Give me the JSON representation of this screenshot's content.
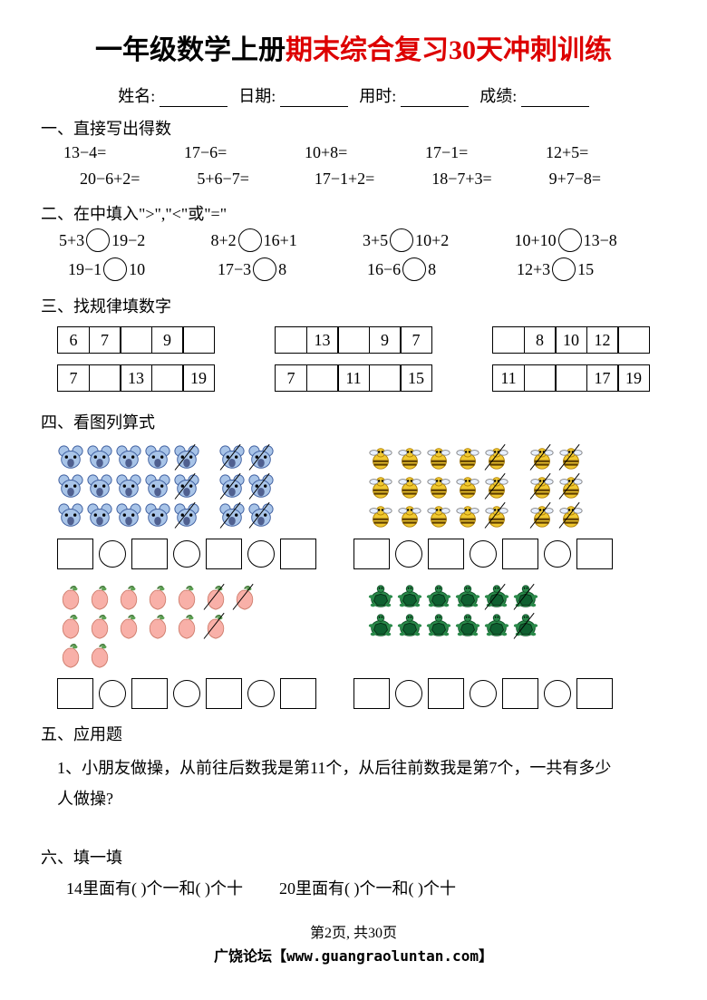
{
  "title_black": "一年级数学上册",
  "title_red": "期末综合复习30天冲刺训练",
  "form": {
    "name_label": "姓名:",
    "date_label": "日期:",
    "time_label": "用时:",
    "score_label": "成绩:"
  },
  "s1": {
    "head": "一、直接写出得数",
    "r1": [
      "13−4=",
      "17−6=",
      "10+8=",
      "17−1=",
      "12+5="
    ],
    "r2": [
      "20−6+2=",
      "5+6−7=",
      "17−1+2=",
      "18−7+3=",
      "9+7−8="
    ]
  },
  "s2": {
    "head": "二、在中填入\">\",\"<\"或\"=\"",
    "r1": [
      {
        "l": "5+3",
        "r": "19−2"
      },
      {
        "l": "8+2",
        "r": "16+1"
      },
      {
        "l": "3+5",
        "r": "10+2"
      },
      {
        "l": "10+10",
        "r": "13−8"
      }
    ],
    "r2": [
      {
        "l": "19−1",
        "r": "10"
      },
      {
        "l": "17−3",
        "r": "8"
      },
      {
        "l": "16−6",
        "r": "8"
      },
      {
        "l": "12+3",
        "r": "15"
      }
    ]
  },
  "s3": {
    "head": "三、找规律填数字",
    "rows": [
      [
        [
          "6",
          "7",
          "",
          "9",
          ""
        ],
        [
          "",
          "13",
          "",
          "9",
          "7"
        ],
        [
          "",
          "8",
          "10",
          "12",
          ""
        ]
      ],
      [
        [
          "7",
          "",
          "13",
          "",
          "19"
        ],
        [
          "7",
          "",
          "11",
          "",
          "15"
        ],
        [
          "11",
          "",
          "",
          "17",
          "19"
        ]
      ]
    ]
  },
  "s4": {
    "head": "四、看图列算式",
    "problems": [
      {
        "left_icon": "koala",
        "left_cols": [
          {
            "rows": 3,
            "per": 5,
            "slashed": [
              [
                0,
                4
              ],
              [
                1,
                4
              ],
              [
                2,
                4
              ]
            ]
          },
          {
            "rows": 3,
            "per": 2,
            "slashed": [
              [
                0,
                0
              ],
              [
                0,
                1
              ],
              [
                1,
                0
              ],
              [
                1,
                1
              ],
              [
                2,
                0
              ],
              [
                2,
                1
              ]
            ]
          }
        ],
        "right_icon": "bee",
        "right_cols": [
          {
            "rows": 3,
            "per": 5,
            "slashed": [
              [
                0,
                4
              ],
              [
                1,
                4
              ],
              [
                2,
                4
              ]
            ]
          },
          {
            "rows": 3,
            "per": 2,
            "slashed": [
              [
                0,
                0
              ],
              [
                0,
                1
              ],
              [
                1,
                0
              ],
              [
                1,
                1
              ],
              [
                2,
                0
              ],
              [
                2,
                1
              ]
            ]
          }
        ]
      },
      {
        "left_icon": "peach",
        "left_cols": [
          {
            "rows_vals": [
              7,
              6,
              2
            ],
            "slashed": [
              [
                0,
                5
              ],
              [
                0,
                6
              ],
              [
                1,
                5
              ]
            ]
          }
        ],
        "right_icon": "turtle",
        "right_cols": [
          {
            "rows": 2,
            "per": 6,
            "slashed": [
              [
                0,
                4
              ],
              [
                0,
                5
              ],
              [
                1,
                5
              ]
            ]
          }
        ]
      }
    ]
  },
  "s5": {
    "head": "五、应用题",
    "q1": "1、小朋友做操，从前往后数我是第11个，从后往前数我是第7个，一共有多少",
    "q1b": "人做操?"
  },
  "s6": {
    "head": "六、填一填",
    "a": "14里面有(        )个一和(        )个十",
    "b": "20里面有(        )个一和(        )个十"
  },
  "footer": {
    "page": "第2页, 共30页",
    "site": "广饶论坛【www.guangraoluntan.com】"
  },
  "colors": {
    "koala": "#a8c4e8",
    "bee": "#f0c830",
    "peach": "#f8b0a8",
    "turtle": "#2a8a4a"
  }
}
